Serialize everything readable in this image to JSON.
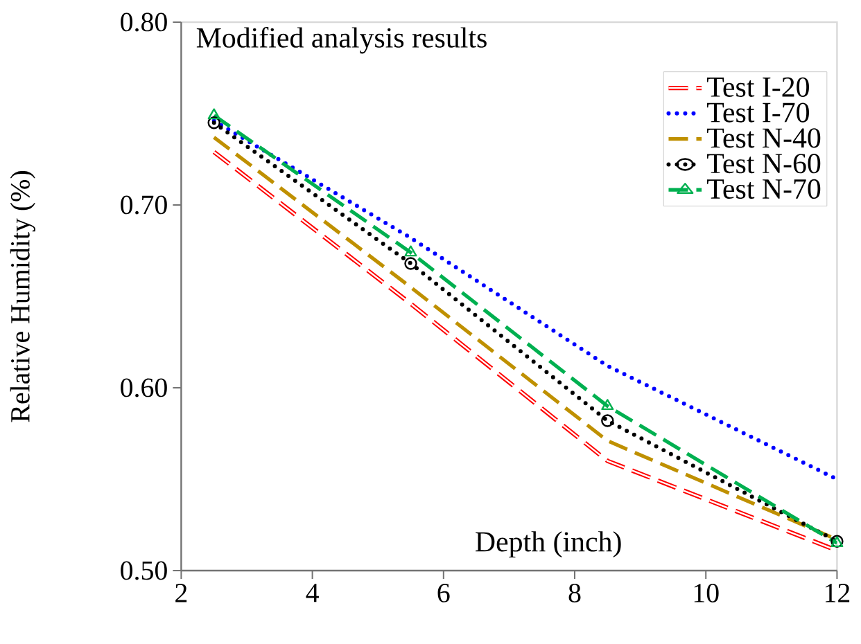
{
  "chart_data": {
    "type": "line",
    "title": "Modified analysis results",
    "xlabel": "Depth (inch)",
    "ylabel": "Relative Humidity (%)",
    "x": [
      2.5,
      5.5,
      8.5,
      12
    ],
    "series": [
      {
        "name": "Test I-20",
        "color": "#ff0000",
        "values": [
          0.729,
          0.646,
          0.56,
          0.511
        ],
        "line_style": "dashed",
        "marker": "none"
      },
      {
        "name": "Test I-70",
        "color": "#0000ff",
        "values": [
          0.746,
          0.682,
          0.612,
          0.55
        ],
        "line_style": "dotted",
        "marker": "none"
      },
      {
        "name": "Test N-40",
        "color": "#bf9000",
        "values": [
          0.737,
          0.655,
          0.571,
          0.517
        ],
        "line_style": "dashed",
        "marker": "none"
      },
      {
        "name": "Test N-60",
        "color": "#000000",
        "values": [
          0.745,
          0.668,
          0.582,
          0.516
        ],
        "line_style": "dotted",
        "marker": "circle"
      },
      {
        "name": "Test N-70",
        "color": "#00b050",
        "values": [
          0.749,
          0.674,
          0.59,
          0.515
        ],
        "line_style": "dashed",
        "marker": "triangle"
      }
    ],
    "xlim": [
      2,
      12
    ],
    "ylim": [
      0.5,
      0.8
    ],
    "xticks": [
      2,
      4,
      6,
      8,
      10,
      12
    ],
    "yticks": [
      {
        "value": 0.5,
        "label": "0.50"
      },
      {
        "value": 0.6,
        "label": "0.60"
      },
      {
        "value": 0.7,
        "label": "0.70"
      },
      {
        "value": 0.8,
        "label": "0.80"
      }
    ],
    "grid": false,
    "legend": "top right"
  }
}
